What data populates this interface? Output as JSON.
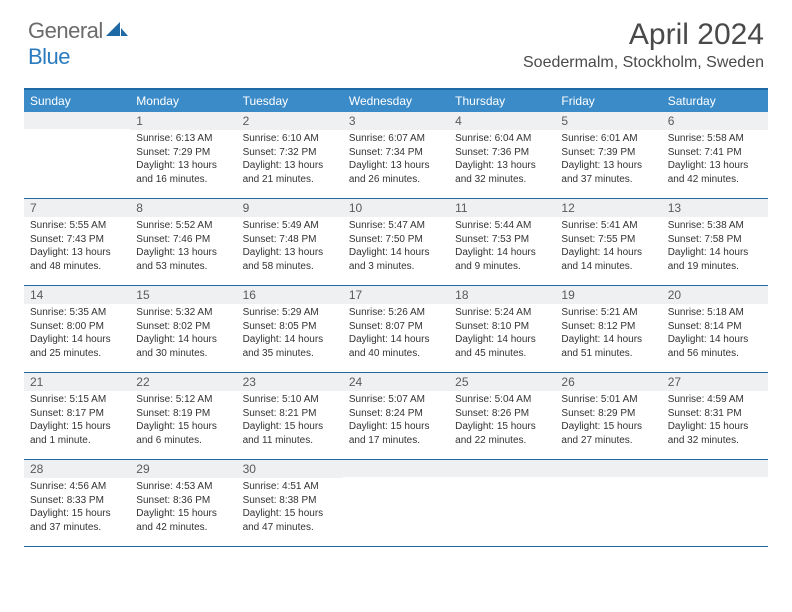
{
  "brand": {
    "general": "General",
    "blue": "Blue"
  },
  "title": "April 2024",
  "location": "Soedermalm, Stockholm, Sweden",
  "colors": {
    "header_bg": "#3b8bc9",
    "header_border": "#1f6aa5",
    "daynum_bg": "#eef0f1",
    "text": "#333333",
    "logo_gray": "#6b6b6b",
    "logo_blue": "#2b7bbf"
  },
  "weekdays": [
    "Sunday",
    "Monday",
    "Tuesday",
    "Wednesday",
    "Thursday",
    "Friday",
    "Saturday"
  ],
  "weeks": [
    [
      {
        "n": null
      },
      {
        "n": "1",
        "sr": "Sunrise: 6:13 AM",
        "ss": "Sunset: 7:29 PM",
        "dl": "Daylight: 13 hours and 16 minutes."
      },
      {
        "n": "2",
        "sr": "Sunrise: 6:10 AM",
        "ss": "Sunset: 7:32 PM",
        "dl": "Daylight: 13 hours and 21 minutes."
      },
      {
        "n": "3",
        "sr": "Sunrise: 6:07 AM",
        "ss": "Sunset: 7:34 PM",
        "dl": "Daylight: 13 hours and 26 minutes."
      },
      {
        "n": "4",
        "sr": "Sunrise: 6:04 AM",
        "ss": "Sunset: 7:36 PM",
        "dl": "Daylight: 13 hours and 32 minutes."
      },
      {
        "n": "5",
        "sr": "Sunrise: 6:01 AM",
        "ss": "Sunset: 7:39 PM",
        "dl": "Daylight: 13 hours and 37 minutes."
      },
      {
        "n": "6",
        "sr": "Sunrise: 5:58 AM",
        "ss": "Sunset: 7:41 PM",
        "dl": "Daylight: 13 hours and 42 minutes."
      }
    ],
    [
      {
        "n": "7",
        "sr": "Sunrise: 5:55 AM",
        "ss": "Sunset: 7:43 PM",
        "dl": "Daylight: 13 hours and 48 minutes."
      },
      {
        "n": "8",
        "sr": "Sunrise: 5:52 AM",
        "ss": "Sunset: 7:46 PM",
        "dl": "Daylight: 13 hours and 53 minutes."
      },
      {
        "n": "9",
        "sr": "Sunrise: 5:49 AM",
        "ss": "Sunset: 7:48 PM",
        "dl": "Daylight: 13 hours and 58 minutes."
      },
      {
        "n": "10",
        "sr": "Sunrise: 5:47 AM",
        "ss": "Sunset: 7:50 PM",
        "dl": "Daylight: 14 hours and 3 minutes."
      },
      {
        "n": "11",
        "sr": "Sunrise: 5:44 AM",
        "ss": "Sunset: 7:53 PM",
        "dl": "Daylight: 14 hours and 9 minutes."
      },
      {
        "n": "12",
        "sr": "Sunrise: 5:41 AM",
        "ss": "Sunset: 7:55 PM",
        "dl": "Daylight: 14 hours and 14 minutes."
      },
      {
        "n": "13",
        "sr": "Sunrise: 5:38 AM",
        "ss": "Sunset: 7:58 PM",
        "dl": "Daylight: 14 hours and 19 minutes."
      }
    ],
    [
      {
        "n": "14",
        "sr": "Sunrise: 5:35 AM",
        "ss": "Sunset: 8:00 PM",
        "dl": "Daylight: 14 hours and 25 minutes."
      },
      {
        "n": "15",
        "sr": "Sunrise: 5:32 AM",
        "ss": "Sunset: 8:02 PM",
        "dl": "Daylight: 14 hours and 30 minutes."
      },
      {
        "n": "16",
        "sr": "Sunrise: 5:29 AM",
        "ss": "Sunset: 8:05 PM",
        "dl": "Daylight: 14 hours and 35 minutes."
      },
      {
        "n": "17",
        "sr": "Sunrise: 5:26 AM",
        "ss": "Sunset: 8:07 PM",
        "dl": "Daylight: 14 hours and 40 minutes."
      },
      {
        "n": "18",
        "sr": "Sunrise: 5:24 AM",
        "ss": "Sunset: 8:10 PM",
        "dl": "Daylight: 14 hours and 45 minutes."
      },
      {
        "n": "19",
        "sr": "Sunrise: 5:21 AM",
        "ss": "Sunset: 8:12 PM",
        "dl": "Daylight: 14 hours and 51 minutes."
      },
      {
        "n": "20",
        "sr": "Sunrise: 5:18 AM",
        "ss": "Sunset: 8:14 PM",
        "dl": "Daylight: 14 hours and 56 minutes."
      }
    ],
    [
      {
        "n": "21",
        "sr": "Sunrise: 5:15 AM",
        "ss": "Sunset: 8:17 PM",
        "dl": "Daylight: 15 hours and 1 minute."
      },
      {
        "n": "22",
        "sr": "Sunrise: 5:12 AM",
        "ss": "Sunset: 8:19 PM",
        "dl": "Daylight: 15 hours and 6 minutes."
      },
      {
        "n": "23",
        "sr": "Sunrise: 5:10 AM",
        "ss": "Sunset: 8:21 PM",
        "dl": "Daylight: 15 hours and 11 minutes."
      },
      {
        "n": "24",
        "sr": "Sunrise: 5:07 AM",
        "ss": "Sunset: 8:24 PM",
        "dl": "Daylight: 15 hours and 17 minutes."
      },
      {
        "n": "25",
        "sr": "Sunrise: 5:04 AM",
        "ss": "Sunset: 8:26 PM",
        "dl": "Daylight: 15 hours and 22 minutes."
      },
      {
        "n": "26",
        "sr": "Sunrise: 5:01 AM",
        "ss": "Sunset: 8:29 PM",
        "dl": "Daylight: 15 hours and 27 minutes."
      },
      {
        "n": "27",
        "sr": "Sunrise: 4:59 AM",
        "ss": "Sunset: 8:31 PM",
        "dl": "Daylight: 15 hours and 32 minutes."
      }
    ],
    [
      {
        "n": "28",
        "sr": "Sunrise: 4:56 AM",
        "ss": "Sunset: 8:33 PM",
        "dl": "Daylight: 15 hours and 37 minutes."
      },
      {
        "n": "29",
        "sr": "Sunrise: 4:53 AM",
        "ss": "Sunset: 8:36 PM",
        "dl": "Daylight: 15 hours and 42 minutes."
      },
      {
        "n": "30",
        "sr": "Sunrise: 4:51 AM",
        "ss": "Sunset: 8:38 PM",
        "dl": "Daylight: 15 hours and 47 minutes."
      },
      {
        "n": null
      },
      {
        "n": null
      },
      {
        "n": null
      },
      {
        "n": null
      }
    ]
  ]
}
